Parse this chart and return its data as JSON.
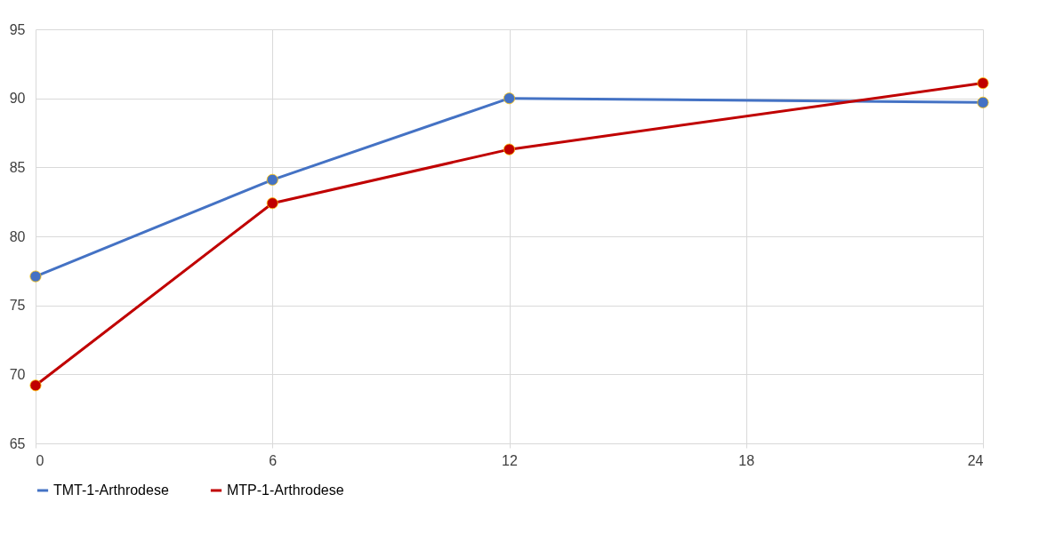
{
  "chart_data": {
    "type": "line",
    "x": [
      0,
      6,
      12,
      24
    ],
    "series": [
      {
        "name": "TMT-1-Arthrodese",
        "color": "#4472c4",
        "values": [
          77.1,
          84.1,
          90.0,
          89.7
        ]
      },
      {
        "name": "MTP-1-Arthrodese",
        "color": "#c00000",
        "values": [
          69.2,
          82.4,
          86.3,
          91.1
        ]
      }
    ],
    "xlim": [
      0,
      24
    ],
    "xticks": [
      0,
      6,
      12,
      18,
      24
    ],
    "ylim": [
      65,
      95
    ],
    "yticks": [
      65,
      70,
      75,
      80,
      85,
      90,
      95
    ],
    "grid": true,
    "legend": "bottom",
    "marker": "circle",
    "line_style": "solid"
  }
}
